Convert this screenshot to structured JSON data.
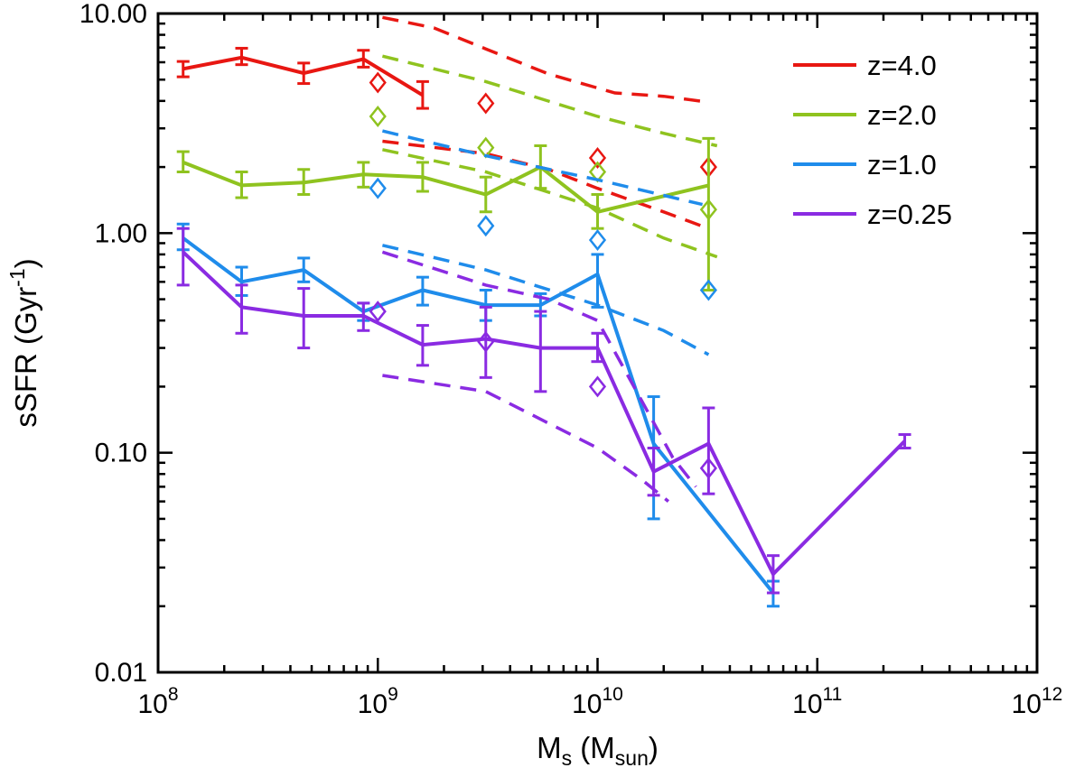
{
  "figure": {
    "background": "#ffffff",
    "frame_color": "#000000",
    "text_color": "#000000"
  },
  "chart_data": {
    "type": "line",
    "title": "",
    "xlabel": "M_s (M_sun)",
    "ylabel": "sSFR (Gyr^-1)",
    "x_scale": "log",
    "y_scale": "log",
    "xlim": [
      100000000.0,
      1000000000000.0
    ],
    "ylim": [
      0.01,
      10
    ],
    "grid": false,
    "x_ticks": [
      {
        "value": 100000000.0,
        "base": "10",
        "exp": "8"
      },
      {
        "value": 1000000000.0,
        "base": "10",
        "exp": "9"
      },
      {
        "value": 10000000000.0,
        "base": "10",
        "exp": "10"
      },
      {
        "value": 100000000000.0,
        "base": "10",
        "exp": "11"
      },
      {
        "value": 1000000000000.0,
        "base": "10",
        "exp": "12"
      }
    ],
    "y_ticks": [
      {
        "value": 10,
        "label": "10.00"
      },
      {
        "value": 1,
        "label": "1.00"
      },
      {
        "value": 0.1,
        "label": "0.10"
      },
      {
        "value": 0.01,
        "label": "0.01"
      }
    ],
    "ylabel_parts": {
      "pre": "sSFR (Gyr",
      "sup": "-1",
      "post": ")"
    },
    "xlabel_parts": {
      "pre": "M",
      "sub1": "s",
      "mid": " (M",
      "sub2": "sun",
      "post": ")"
    },
    "legend": {
      "position": "top-right",
      "entries": [
        {
          "label": "z=4.0",
          "color": "#e81712"
        },
        {
          "label": "z=2.0",
          "color": "#8fc31f"
        },
        {
          "label": "z=1.0",
          "color": "#1f8ceb"
        },
        {
          "label": "z=0.25",
          "color": "#8a2be2"
        }
      ]
    },
    "groups": [
      {
        "name": "z=4.0",
        "color": "#e81712",
        "median": [
          [
            130000000.0,
            5.6,
            5.15,
            6.05
          ],
          [
            240000000.0,
            6.3,
            5.85,
            6.95
          ],
          [
            460000000.0,
            5.35,
            4.8,
            5.95
          ],
          [
            860000000.0,
            6.2,
            5.7,
            6.8
          ],
          [
            1600000000.0,
            4.25,
            3.7,
            4.9
          ]
        ],
        "dashed_upper": [
          [
            1050000000.0,
            9.6
          ],
          [
            1800000000.0,
            8.6
          ],
          [
            3100000000.0,
            6.9
          ],
          [
            6000000000.0,
            5.3
          ],
          [
            12000000000.0,
            4.35
          ],
          [
            20000000000.0,
            4.2
          ],
          [
            32000000000.0,
            3.95
          ]
        ],
        "dashed_lower": [
          [
            1050000000.0,
            2.62
          ],
          [
            3100000000.0,
            2.3
          ],
          [
            6000000000.0,
            1.95
          ],
          [
            10000000000.0,
            1.6
          ],
          [
            20000000000.0,
            1.25
          ],
          [
            32000000000.0,
            1.05
          ]
        ],
        "diamonds": [
          [
            1000000000.0,
            4.85
          ],
          [
            3100000000.0,
            3.9
          ],
          [
            10000000000.0,
            2.2
          ],
          [
            32000000000.0,
            2.0
          ]
        ]
      },
      {
        "name": "z=2.0",
        "color": "#8fc31f",
        "median": [
          [
            130000000.0,
            2.1,
            1.9,
            2.35
          ],
          [
            240000000.0,
            1.65,
            1.45,
            1.9
          ],
          [
            460000000.0,
            1.7,
            1.5,
            1.95
          ],
          [
            860000000.0,
            1.85,
            1.62,
            2.1
          ],
          [
            1600000000.0,
            1.8,
            1.55,
            2.1
          ],
          [
            3100000000.0,
            1.5,
            1.25,
            1.8
          ],
          [
            5500000000.0,
            2.0,
            1.6,
            2.5
          ],
          [
            10000000000.0,
            1.25,
            1.05,
            1.5
          ],
          [
            32000000000.0,
            1.65,
            0.55,
            2.7
          ]
        ],
        "dashed_upper": [
          [
            1050000000.0,
            6.4
          ],
          [
            3100000000.0,
            4.9
          ],
          [
            10000000000.0,
            3.4
          ],
          [
            20000000000.0,
            2.85
          ],
          [
            35000000000.0,
            2.5
          ]
        ],
        "dashed_lower": [
          [
            1050000000.0,
            2.4
          ],
          [
            3100000000.0,
            1.9
          ],
          [
            10000000000.0,
            1.3
          ],
          [
            20000000000.0,
            0.95
          ],
          [
            35000000000.0,
            0.78
          ]
        ],
        "diamonds": [
          [
            1000000000.0,
            3.4
          ],
          [
            3100000000.0,
            2.45
          ],
          [
            10000000000.0,
            1.9
          ],
          [
            32000000000.0,
            1.28
          ]
        ]
      },
      {
        "name": "z=1.0",
        "color": "#1f8ceb",
        "median": [
          [
            130000000.0,
            0.95,
            0.84,
            1.1
          ],
          [
            240000000.0,
            0.6,
            0.52,
            0.7
          ],
          [
            460000000.0,
            0.68,
            0.6,
            0.77
          ],
          [
            860000000.0,
            0.44,
            0.4,
            0.48
          ],
          [
            1600000000.0,
            0.55,
            0.47,
            0.63
          ],
          [
            3100000000.0,
            0.47,
            0.4,
            0.55
          ],
          [
            5500000000.0,
            0.47,
            0.42,
            0.53
          ],
          [
            10000000000.0,
            0.65,
            0.46,
            0.8
          ],
          [
            18000000000.0,
            0.11,
            0.05,
            0.18
          ],
          [
            63000000000.0,
            0.023,
            0.02,
            0.026
          ]
        ],
        "dashed_upper": [
          [
            1050000000.0,
            2.92
          ],
          [
            3100000000.0,
            2.25
          ],
          [
            10000000000.0,
            1.75
          ],
          [
            30000000000.0,
            1.35
          ]
        ],
        "dashed_lower": [
          [
            1050000000.0,
            0.88
          ],
          [
            3100000000.0,
            0.68
          ],
          [
            10000000000.0,
            0.47
          ],
          [
            20000000000.0,
            0.36
          ],
          [
            32000000000.0,
            0.28
          ]
        ],
        "diamonds": [
          [
            1000000000.0,
            1.6
          ],
          [
            3100000000.0,
            1.08
          ],
          [
            10000000000.0,
            0.93
          ],
          [
            32000000000.0,
            0.55
          ]
        ]
      },
      {
        "name": "z=0.25",
        "color": "#8a2be2",
        "median": [
          [
            130000000.0,
            0.82,
            0.58,
            1.05
          ],
          [
            240000000.0,
            0.46,
            0.35,
            0.58
          ],
          [
            460000000.0,
            0.42,
            0.3,
            0.56
          ],
          [
            860000000.0,
            0.42,
            0.36,
            0.48
          ],
          [
            1600000000.0,
            0.31,
            0.25,
            0.38
          ],
          [
            3100000000.0,
            0.33,
            0.22,
            0.46
          ],
          [
            5500000000.0,
            0.3,
            0.19,
            0.44
          ],
          [
            10000000000.0,
            0.3,
            0.26,
            0.35
          ],
          [
            18000000000.0,
            0.082,
            0.064,
            0.105
          ],
          [
            32000000000.0,
            0.11,
            0.065,
            0.16
          ],
          [
            63000000000.0,
            0.028,
            0.023,
            0.034
          ],
          [
            250000000000.0,
            0.113,
            0.105,
            0.121
          ]
        ],
        "dashed_upper": [
          [
            1050000000.0,
            0.82
          ],
          [
            3100000000.0,
            0.58
          ],
          [
            6000000000.0,
            0.5
          ],
          [
            10000000000.0,
            0.4
          ],
          [
            16000000000.0,
            0.17
          ],
          [
            22000000000.0,
            0.095
          ],
          [
            28000000000.0,
            0.07
          ]
        ],
        "dashed_lower": [
          [
            1050000000.0,
            0.225
          ],
          [
            3100000000.0,
            0.19
          ],
          [
            10000000000.0,
            0.105
          ],
          [
            16000000000.0,
            0.075
          ],
          [
            21000000000.0,
            0.06
          ]
        ],
        "diamonds": [
          [
            1000000000.0,
            0.44
          ],
          [
            3100000000.0,
            0.32
          ],
          [
            10000000000.0,
            0.2
          ],
          [
            32000000000.0,
            0.085
          ]
        ]
      }
    ]
  }
}
